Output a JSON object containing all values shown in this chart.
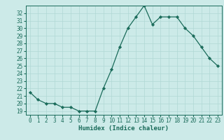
{
  "x": [
    0,
    1,
    2,
    3,
    4,
    5,
    6,
    7,
    8,
    9,
    10,
    11,
    12,
    13,
    14,
    15,
    16,
    17,
    18,
    19,
    20,
    21,
    22,
    23
  ],
  "y": [
    21.5,
    20.5,
    20.0,
    20.0,
    19.5,
    19.5,
    19.0,
    19.0,
    19.0,
    22.0,
    24.5,
    27.5,
    30.0,
    31.5,
    33.0,
    30.5,
    31.5,
    31.5,
    31.5,
    30.0,
    29.0,
    27.5,
    26.0,
    25.0
  ],
  "line_color": "#1a6b5a",
  "marker_color": "#1a6b5a",
  "bg_color": "#cceae8",
  "grid_color": "#b0d8d4",
  "xlabel": "Humidex (Indice chaleur)",
  "xlim": [
    -0.5,
    23.5
  ],
  "ylim": [
    18.5,
    33.0
  ],
  "yticks": [
    19,
    20,
    21,
    22,
    23,
    24,
    25,
    26,
    27,
    28,
    29,
    30,
    31,
    32
  ],
  "xticks": [
    0,
    1,
    2,
    3,
    4,
    5,
    6,
    7,
    8,
    9,
    10,
    11,
    12,
    13,
    14,
    15,
    16,
    17,
    18,
    19,
    20,
    21,
    22,
    23
  ],
  "xtick_labels": [
    "0",
    "1",
    "2",
    "3",
    "4",
    "5",
    "6",
    "7",
    "8",
    "9",
    "10",
    "11",
    "12",
    "13",
    "14",
    "15",
    "16",
    "17",
    "18",
    "19",
    "20",
    "21",
    "22",
    "23"
  ],
  "font_color": "#1a6b5a",
  "tick_fontsize": 5.5,
  "label_fontsize": 6.5,
  "linewidth": 0.9,
  "markersize": 2.2
}
